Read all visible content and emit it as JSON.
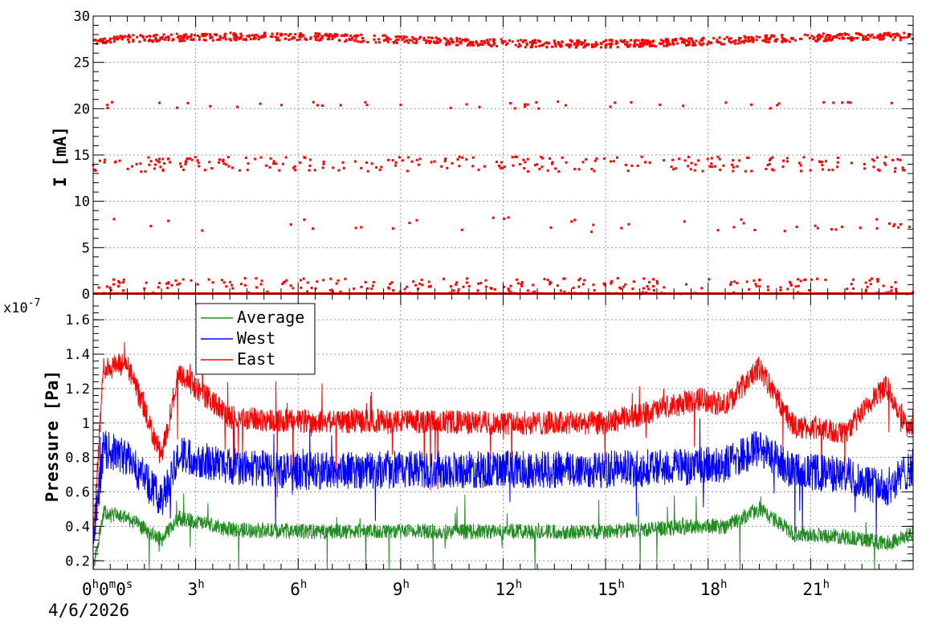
{
  "chart_data": [
    {
      "type": "scatter",
      "ylabel": "I [mA]",
      "ylim": [
        0,
        30
      ],
      "yticks": [
        0,
        5,
        10,
        15,
        20,
        25,
        30
      ],
      "x_unit": "hours since 4/6/2026 00:00:00",
      "xlim": [
        0,
        24
      ],
      "grid": true,
      "series": [
        {
          "color": "#ff0000",
          "bands": [
            {
              "level": 27.4,
              "spread": 0.4,
              "density": "continuous"
            },
            {
              "level": 20.4,
              "spread": 0.4,
              "density": "sparse"
            },
            {
              "level": 14.0,
              "spread": 0.8,
              "density": "medium"
            },
            {
              "level": 7.5,
              "spread": 0.8,
              "density": "sparse"
            },
            {
              "level": 0.8,
              "spread": 0.9,
              "density": "medium"
            },
            {
              "level": 0.0,
              "spread": 0.05,
              "density": "continuous"
            }
          ]
        }
      ]
    },
    {
      "type": "line",
      "ylabel": "Pressure [Pa]",
      "y_multiplier": "x10",
      "y_multiplier_exp": "-7",
      "ylim": [
        0.15,
        1.75
      ],
      "yticks": [
        0.2,
        0.4,
        0.6,
        0.8,
        1,
        1.2,
        1.4,
        1.6
      ],
      "ytick_labels": [
        "0.2",
        "0.4",
        "0.6",
        "0.8",
        "1",
        "1.2",
        "1.4",
        "1.6"
      ],
      "xlim": [
        0,
        24
      ],
      "grid": true,
      "legend_position": "top-left",
      "series": [
        {
          "name": "Average",
          "color": "#228b22",
          "x": [
            0,
            0.3,
            1,
            2,
            2.5,
            4,
            6,
            9,
            12,
            15,
            17.8,
            18.5,
            19.5,
            20.5,
            22,
            23.2,
            24
          ],
          "y": [
            0.15,
            0.48,
            0.45,
            0.32,
            0.45,
            0.38,
            0.37,
            0.37,
            0.37,
            0.37,
            0.4,
            0.4,
            0.5,
            0.36,
            0.34,
            0.3,
            0.36
          ]
        },
        {
          "name": "West",
          "color": "#0000ff",
          "x": [
            0,
            0.3,
            1,
            2,
            2.5,
            4,
            6,
            9,
            12,
            15,
            17.8,
            18.5,
            19.5,
            20.5,
            22,
            23.2,
            24
          ],
          "y": [
            0.3,
            0.85,
            0.8,
            0.55,
            0.82,
            0.75,
            0.72,
            0.73,
            0.73,
            0.73,
            0.75,
            0.76,
            0.86,
            0.72,
            0.7,
            0.62,
            0.75
          ]
        },
        {
          "name": "East",
          "color": "#ff0000",
          "x": [
            0,
            0.3,
            1,
            2,
            2.5,
            4,
            6,
            9,
            12,
            15,
            17.8,
            18.5,
            19.5,
            20.5,
            22,
            23.2,
            24
          ],
          "y": [
            0.32,
            1.32,
            1.34,
            0.8,
            1.3,
            1.03,
            1.01,
            1.01,
            1.0,
            1.0,
            1.14,
            1.1,
            1.32,
            0.98,
            0.94,
            1.22,
            0.92
          ]
        }
      ]
    }
  ],
  "xaxis": {
    "ticks": [
      {
        "pos": 0,
        "label": "0",
        "sup": "h",
        "label2": "0",
        "sup2": "m",
        "label3": "0",
        "sup3": "s"
      },
      {
        "pos": 3,
        "label": "3",
        "sup": "h"
      },
      {
        "pos": 6,
        "label": "6",
        "sup": "h"
      },
      {
        "pos": 9,
        "label": "9",
        "sup": "h"
      },
      {
        "pos": 12,
        "label": "12",
        "sup": "h"
      },
      {
        "pos": 15,
        "label": "15",
        "sup": "h"
      },
      {
        "pos": 18,
        "label": "18",
        "sup": "h"
      },
      {
        "pos": 21,
        "label": "21",
        "sup": "h"
      }
    ],
    "date": "4/6/2026"
  }
}
